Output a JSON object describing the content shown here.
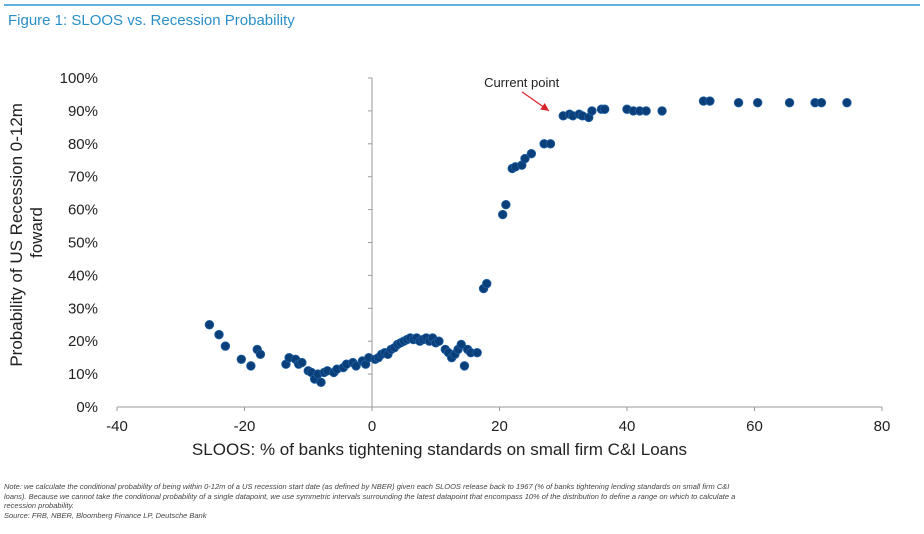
{
  "header": {
    "title": "Figure 1: SLOOS vs. Recession Probability"
  },
  "colors": {
    "accent": "#2a8fc8",
    "rule": "#5fb0dc",
    "point": "#0b3f7a",
    "arrow": "#d9232a"
  },
  "chart_data": {
    "type": "scatter",
    "title": "Figure 1: SLOOS vs. Recession Probability",
    "xlabel": "SLOOS: % of banks tightening standards on small firm C&I Loans",
    "ylabel": "Probability of US Recession 0-12m foward",
    "ylabel_lines": [
      "Probability of US Recession 0-12m",
      "foward"
    ],
    "xlim": [
      -40,
      80
    ],
    "ylim": [
      0,
      100
    ],
    "x_ticks": [
      -40,
      -20,
      0,
      20,
      40,
      60,
      80
    ],
    "x_tick_labels": [
      "-40",
      "-20",
      "0",
      "20",
      "40",
      "60",
      "80"
    ],
    "y_ticks": [
      0,
      10,
      20,
      30,
      40,
      50,
      60,
      70,
      80,
      90,
      100
    ],
    "y_tick_labels": [
      "0%",
      "10%",
      "20%",
      "30%",
      "40%",
      "50%",
      "60%",
      "70%",
      "80%",
      "90%",
      "100%"
    ],
    "grid": false,
    "annotation": {
      "text": "Current point",
      "x": 29.5,
      "y": 88.5
    },
    "points": [
      [
        -25.5,
        25
      ],
      [
        -24,
        22
      ],
      [
        -23,
        18.5
      ],
      [
        -20.5,
        14.5
      ],
      [
        -19,
        12.5
      ],
      [
        -18,
        17.5
      ],
      [
        -17.5,
        16
      ],
      [
        -13.5,
        13
      ],
      [
        -13,
        15
      ],
      [
        -12,
        14.5
      ],
      [
        -11.5,
        13
      ],
      [
        -11,
        13.5
      ],
      [
        -10,
        11
      ],
      [
        -9.5,
        10.5
      ],
      [
        -9,
        8.5
      ],
      [
        -8.5,
        10
      ],
      [
        -8,
        7.5
      ],
      [
        -7.5,
        10.5
      ],
      [
        -7,
        11
      ],
      [
        -6,
        10.5
      ],
      [
        -5.5,
        11.5
      ],
      [
        -4.5,
        12
      ],
      [
        -4,
        13
      ],
      [
        -3,
        13.5
      ],
      [
        -2.5,
        12.5
      ],
      [
        -1.5,
        14
      ],
      [
        -1,
        13
      ],
      [
        -0.5,
        15
      ],
      [
        0.5,
        14.5
      ],
      [
        1,
        15
      ],
      [
        1.5,
        16
      ],
      [
        2,
        16.5
      ],
      [
        2.5,
        16
      ],
      [
        3,
        17.5
      ],
      [
        3.5,
        18
      ],
      [
        4,
        19
      ],
      [
        4.5,
        19.5
      ],
      [
        5,
        20
      ],
      [
        5.5,
        20.5
      ],
      [
        6,
        21
      ],
      [
        6.5,
        20.5
      ],
      [
        7,
        21
      ],
      [
        7.5,
        20
      ],
      [
        8,
        20.5
      ],
      [
        8.5,
        21
      ],
      [
        9,
        20
      ],
      [
        9.5,
        21
      ],
      [
        10,
        19.5
      ],
      [
        10.5,
        20
      ],
      [
        11.5,
        17.5
      ],
      [
        12,
        16.5
      ],
      [
        12.5,
        15
      ],
      [
        13,
        16
      ],
      [
        13.5,
        17.5
      ],
      [
        14,
        19
      ],
      [
        14.5,
        12.5
      ],
      [
        15,
        17.5
      ],
      [
        15.5,
        16.5
      ],
      [
        16.5,
        16.5
      ],
      [
        17.5,
        36
      ],
      [
        18,
        37.5
      ],
      [
        20.5,
        58.5
      ],
      [
        21,
        61.5
      ],
      [
        22,
        72.5
      ],
      [
        22.5,
        73
      ],
      [
        23.5,
        73.5
      ],
      [
        24,
        75.5
      ],
      [
        25,
        77
      ],
      [
        27,
        80
      ],
      [
        28,
        80
      ],
      [
        30,
        88.5
      ],
      [
        31,
        89
      ],
      [
        31.5,
        88.5
      ],
      [
        32.5,
        89
      ],
      [
        33,
        88.5
      ],
      [
        34,
        88
      ],
      [
        34.5,
        90
      ],
      [
        36,
        90.5
      ],
      [
        36.5,
        90.5
      ],
      [
        40,
        90.5
      ],
      [
        41,
        90
      ],
      [
        42,
        90
      ],
      [
        43,
        90
      ],
      [
        45.5,
        90
      ],
      [
        52,
        93
      ],
      [
        53,
        93
      ],
      [
        57.5,
        92.5
      ],
      [
        60.5,
        92.5
      ],
      [
        65.5,
        92.5
      ],
      [
        69.5,
        92.5
      ],
      [
        70.5,
        92.5
      ],
      [
        74.5,
        92.5
      ]
    ]
  },
  "notes": {
    "line1": "Note: we calculate the conditional probability of being within 0-12m of a US recession start date (as defined by NBER) given each SLOOS release back to 1967 (% of banks tightening lending standards on small firm C&I",
    "line2": "loans). Because we cannot take the conditional probability of a single datapoint, we use symmetric intervals surrounding the latest datapoint that encompass 10% of the distribution to define a range on which to calculate a",
    "line3": "recession probability.",
    "source": "Source: FRB, NBER, Bloomberg Finance LP, Deutsche Bank"
  }
}
